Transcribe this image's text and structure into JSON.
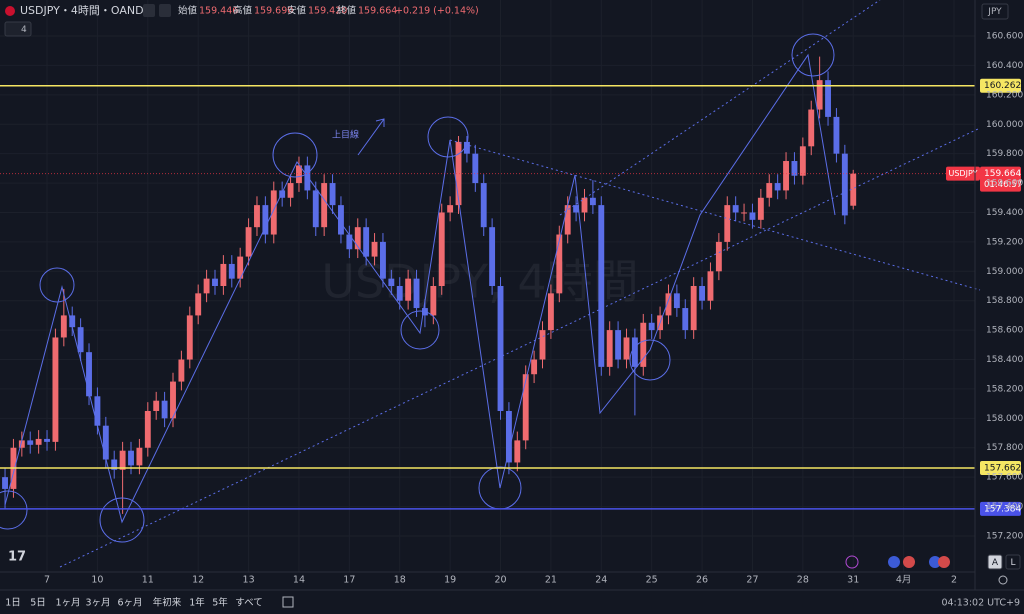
{
  "header": {
    "symbol": "USDJPY・4時間・OANDA",
    "indicators": "4",
    "ohlc": [
      {
        "label": "始値",
        "value": "159.446"
      },
      {
        "label": "高値",
        "value": "159.690"
      },
      {
        "label": "安値",
        "value": "159.420"
      },
      {
        "label": "終値",
        "value": "159.664"
      }
    ],
    "change": "+0.219 (+0.14%)",
    "currency": "JPY"
  },
  "toolbar": {
    "ranges": [
      "1日",
      "5日",
      "1ヶ月",
      "3ヶ月",
      "6ヶ月",
      "年初来",
      "1年",
      "5年",
      "すべて"
    ],
    "clock": "04:13:02 UTC+9",
    "axis_buttons": [
      "A",
      "L"
    ]
  },
  "chart_data": {
    "type": "candlestick",
    "watermark": "USDJPY, 4時間",
    "annotation": "上目線",
    "up_color": "#ef6b70",
    "down_color": "#5b6ee8",
    "grid": true,
    "open": [
      157.6,
      157.52,
      157.8,
      157.85,
      157.82,
      157.86,
      157.84,
      158.55,
      158.7,
      158.62,
      158.45,
      158.15,
      157.95,
      157.72,
      157.65,
      157.78,
      157.68,
      157.8,
      158.05,
      158.12,
      158.0,
      158.25,
      158.4,
      158.7,
      158.85,
      158.95,
      158.9,
      159.05,
      158.95,
      159.1,
      159.3,
      159.45,
      159.25,
      159.55,
      159.5,
      159.6,
      159.72,
      159.55,
      159.3,
      159.6,
      159.45,
      159.25,
      159.15,
      159.3,
      159.1,
      159.2,
      158.95,
      158.9,
      158.8,
      158.95,
      158.75,
      158.7,
      158.9,
      159.4,
      159.45,
      159.88,
      159.8,
      159.6,
      159.3,
      158.9,
      158.05,
      157.7,
      157.85,
      158.3,
      158.4,
      158.6,
      158.85,
      159.25,
      159.45,
      159.4,
      159.5,
      159.45,
      158.35,
      158.6,
      158.4,
      158.55,
      158.35,
      158.65,
      158.6,
      158.7,
      158.85,
      158.75,
      158.6,
      158.9,
      158.8,
      159.0,
      159.2,
      159.45,
      159.4,
      159.4,
      159.35,
      159.5,
      159.6,
      159.55,
      159.75,
      159.65,
      159.85,
      160.1,
      160.3,
      160.05,
      159.8,
      159.446
    ],
    "high": [
      157.66,
      157.86,
      157.91,
      157.91,
      157.92,
      157.92,
      158.61,
      158.88,
      158.76,
      158.68,
      158.51,
      158.21,
      158.01,
      157.78,
      157.84,
      157.84,
      157.86,
      158.11,
      158.18,
      158.18,
      158.31,
      158.46,
      158.76,
      158.91,
      159.01,
      159.01,
      159.11,
      159.11,
      159.16,
      159.36,
      159.51,
      159.51,
      159.61,
      159.61,
      159.66,
      159.78,
      159.78,
      159.61,
      159.66,
      159.66,
      159.51,
      159.31,
      159.36,
      159.36,
      159.26,
      159.26,
      159.01,
      158.96,
      159.01,
      159.01,
      158.81,
      158.96,
      159.46,
      159.51,
      159.92,
      159.92,
      159.86,
      159.66,
      159.36,
      158.96,
      158.11,
      157.91,
      158.36,
      158.46,
      158.66,
      158.91,
      159.31,
      159.51,
      159.51,
      159.56,
      159.62,
      159.51,
      158.66,
      158.66,
      158.61,
      158.61,
      158.71,
      158.71,
      158.76,
      158.91,
      158.91,
      158.81,
      158.96,
      158.96,
      159.06,
      159.26,
      159.51,
      159.51,
      159.46,
      159.46,
      159.56,
      159.66,
      159.66,
      159.81,
      159.81,
      159.91,
      160.16,
      160.46,
      160.36,
      160.11,
      159.86,
      159.69
    ],
    "low": [
      157.38,
      157.46,
      157.74,
      157.76,
      157.76,
      157.78,
      157.78,
      158.49,
      158.56,
      158.39,
      158.09,
      157.89,
      157.66,
      157.59,
      157.35,
      157.62,
      157.62,
      157.74,
      157.99,
      157.94,
      157.94,
      158.19,
      158.34,
      158.64,
      158.79,
      158.84,
      158.84,
      158.89,
      158.89,
      159.04,
      159.24,
      159.19,
      159.19,
      159.44,
      159.44,
      159.54,
      159.49,
      159.24,
      159.24,
      159.39,
      159.19,
      159.09,
      159.09,
      159.04,
      159.04,
      158.89,
      158.84,
      158.74,
      158.74,
      158.69,
      158.62,
      158.64,
      158.84,
      159.34,
      159.39,
      159.74,
      159.54,
      159.24,
      158.84,
      157.99,
      157.62,
      157.64,
      157.79,
      158.24,
      158.34,
      158.54,
      158.79,
      159.19,
      159.34,
      159.34,
      159.39,
      158.29,
      158.29,
      158.34,
      158.34,
      158.02,
      158.29,
      158.54,
      158.54,
      158.64,
      158.69,
      158.54,
      158.54,
      158.74,
      158.74,
      158.94,
      159.14,
      159.34,
      159.34,
      159.29,
      159.29,
      159.44,
      159.49,
      159.49,
      159.59,
      159.59,
      159.79,
      160.04,
      159.99,
      159.74,
      159.32,
      159.42
    ],
    "close": [
      157.52,
      157.8,
      157.85,
      157.82,
      157.86,
      157.84,
      158.55,
      158.7,
      158.62,
      158.45,
      158.15,
      157.95,
      157.72,
      157.65,
      157.78,
      157.68,
      157.8,
      158.05,
      158.12,
      158.0,
      158.25,
      158.4,
      158.7,
      158.85,
      158.95,
      158.9,
      159.05,
      158.95,
      159.1,
      159.3,
      159.45,
      159.25,
      159.55,
      159.5,
      159.6,
      159.72,
      159.55,
      159.3,
      159.6,
      159.45,
      159.25,
      159.15,
      159.3,
      159.1,
      159.2,
      158.95,
      158.9,
      158.8,
      158.95,
      158.75,
      158.7,
      158.9,
      159.4,
      159.45,
      159.88,
      159.8,
      159.6,
      159.3,
      158.9,
      158.05,
      157.7,
      157.85,
      158.3,
      158.4,
      158.6,
      158.85,
      159.25,
      159.45,
      159.4,
      159.5,
      159.45,
      158.35,
      158.6,
      158.4,
      158.55,
      158.35,
      158.65,
      158.6,
      158.7,
      158.85,
      158.75,
      158.6,
      158.9,
      158.8,
      159.0,
      159.2,
      159.45,
      159.4,
      159.4,
      159.35,
      159.5,
      159.6,
      159.55,
      159.75,
      159.65,
      159.85,
      160.1,
      160.3,
      160.05,
      159.8,
      159.38,
      159.664
    ],
    "xlim": [
      -0.6,
      115.5
    ],
    "xticks": [
      {
        "value": 5,
        "label": "7"
      },
      {
        "value": 11,
        "label": "10"
      },
      {
        "value": 17,
        "label": "11"
      },
      {
        "value": 23,
        "label": "12"
      },
      {
        "value": 29,
        "label": "13"
      },
      {
        "value": 35,
        "label": "14"
      },
      {
        "value": 41,
        "label": "17"
      },
      {
        "value": 47,
        "label": "18"
      },
      {
        "value": 53,
        "label": "19"
      },
      {
        "value": 59,
        "label": "20"
      },
      {
        "value": 65,
        "label": "21"
      },
      {
        "value": 71,
        "label": "24"
      },
      {
        "value": 77,
        "label": "25"
      },
      {
        "value": 83,
        "label": "26"
      },
      {
        "value": 89,
        "label": "27"
      },
      {
        "value": 95,
        "label": "28"
      },
      {
        "value": 101,
        "label": "31"
      },
      {
        "value": 107,
        "label": "4月"
      },
      {
        "value": 113,
        "label": "2"
      }
    ],
    "ylim": [
      156.955,
      160.845
    ],
    "yticks": [
      {
        "value": 157.2,
        "label": "157.200"
      },
      {
        "value": 157.4,
        "label": "157.400"
      },
      {
        "value": 157.6,
        "label": "157.600"
      },
      {
        "value": 157.8,
        "label": "157.800"
      },
      {
        "value": 158.0,
        "label": "158.000"
      },
      {
        "value": 158.2,
        "label": "158.200"
      },
      {
        "value": 158.4,
        "label": "158.400"
      },
      {
        "value": 158.6,
        "label": "158.600"
      },
      {
        "value": 158.8,
        "label": "158.800"
      },
      {
        "value": 159.0,
        "label": "159.000"
      },
      {
        "value": 159.2,
        "label": "159.200"
      },
      {
        "value": 159.4,
        "label": "159.400"
      },
      {
        "value": 159.6,
        "label": "159.600"
      },
      {
        "value": 159.8,
        "label": "159.800"
      },
      {
        "value": 160.0,
        "label": "160.000"
      },
      {
        "value": 160.2,
        "label": "160.200"
      },
      {
        "value": 160.4,
        "label": "160.400"
      },
      {
        "value": 160.6,
        "label": "160.600"
      }
    ],
    "hlines": [
      {
        "value": 160.262,
        "color": "#f5e663"
      },
      {
        "value": 157.662,
        "color": "#f5e663"
      },
      {
        "value": 157.384,
        "color": "#4a52e8"
      }
    ],
    "last_price": {
      "value": 159.664,
      "symbol": "USDJPY",
      "countdown": "01:46:57",
      "color": "#f23645"
    }
  }
}
